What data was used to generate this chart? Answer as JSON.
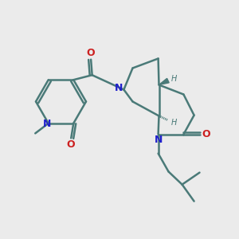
{
  "bg_color": "#ebebeb",
  "bond_color": "#4a7a78",
  "N_color": "#2020cc",
  "O_color": "#cc2020",
  "H_color": "#4a7a78",
  "line_width": 1.8,
  "figsize": [
    3.0,
    3.0
  ],
  "dpi": 100,
  "xlim": [
    0,
    10
  ],
  "ylim": [
    0,
    10
  ]
}
